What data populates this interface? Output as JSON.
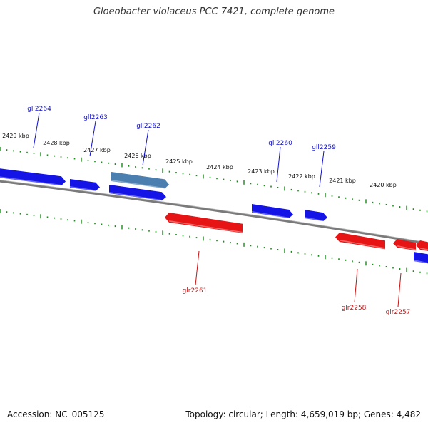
{
  "title": "Gloeobacter violaceus PCC 7421, complete genome",
  "footer": {
    "accession": "Accession: NC_005125",
    "stats": "Topology: circular; Length: 4,659,019 bp; Genes: 4,482"
  },
  "colors": {
    "forward_strand": "#1414e6",
    "forward_selected": "#4a7fb0",
    "reverse_strand": "#e61414",
    "tick": "#1a8a1a",
    "backbone": "#7a7a7a",
    "forward_label": "#1010c8",
    "reverse_label": "#c81010"
  },
  "scale": {
    "unit": "kbp",
    "ticks": [
      {
        "label": "2429 kbp"
      },
      {
        "label": "2428 kbp"
      },
      {
        "label": "2427 kbp"
      },
      {
        "label": "2426 kbp"
      },
      {
        "label": "2425 kbp"
      },
      {
        "label": "2424 kbp"
      },
      {
        "label": "2423 kbp"
      },
      {
        "label": "2422 kbp"
      },
      {
        "label": "2421 kbp"
      },
      {
        "label": "2420 kbp"
      }
    ]
  },
  "genes_forward": [
    {
      "label": "",
      "selected": false
    },
    {
      "label": "gll2264",
      "selected": false
    },
    {
      "label": "gll2263",
      "selected": false
    },
    {
      "label": "gll2262",
      "selected": true
    },
    {
      "label": "gll2260",
      "selected": false
    },
    {
      "label": "gll2259",
      "selected": false
    },
    {
      "label": "",
      "selected": false
    }
  ],
  "genes_reverse": [
    {
      "label": "glr2261"
    },
    {
      "label": "glr2258"
    },
    {
      "label": "glr2257"
    },
    {
      "label": ""
    }
  ]
}
